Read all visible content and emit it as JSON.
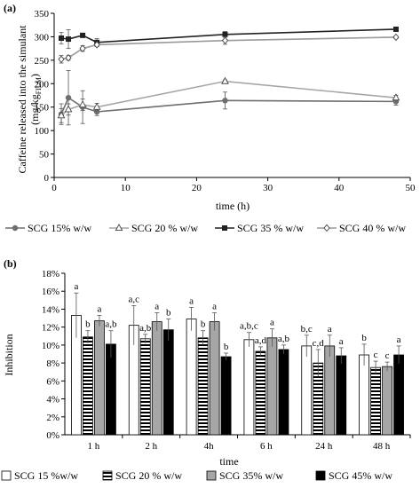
{
  "chart_data": [
    {
      "panel_label": "(a)",
      "type": "line",
      "xlabel": "time (h)",
      "ylabel_line1": "Caffeine released into the simulant",
      "ylabel_line2": "(mg/kg",
      "ylabel_sub": "FILM",
      "ylabel_close": ")",
      "xlim": [
        0,
        50
      ],
      "ylim": [
        0,
        350
      ],
      "xticks": [
        0,
        10,
        20,
        30,
        40,
        50
      ],
      "yticks": [
        0,
        50,
        100,
        150,
        200,
        250,
        300,
        350
      ],
      "grid": false,
      "legend_position": "bottom",
      "series": [
        {
          "name": "SCG 15% w/w",
          "color": "#6e6e6e",
          "marker": "circle-filled",
          "x": [
            1,
            2,
            4,
            6,
            24,
            48
          ],
          "y": [
            135,
            170,
            150,
            140,
            164,
            162
          ],
          "err": [
            22,
            58,
            35,
            8,
            18,
            8
          ]
        },
        {
          "name": "SCG 20 % w/w",
          "color": "#a6a6a6",
          "marker": "triangle-open",
          "x": [
            1,
            2,
            4,
            6,
            24,
            48
          ],
          "y": [
            132,
            145,
            155,
            150,
            205,
            170
          ],
          "err": [
            15,
            12,
            12,
            8,
            3,
            5
          ]
        },
        {
          "name": "SCG 35 % w/w",
          "color": "#222222",
          "marker": "square-filled",
          "x": [
            1,
            2,
            4,
            6,
            24,
            48
          ],
          "y": [
            297,
            295,
            303,
            288,
            305,
            316
          ],
          "err": [
            12,
            20,
            4,
            8,
            6,
            3
          ]
        },
        {
          "name": "SCG 40 % w/w",
          "color": "#9a9a9a",
          "marker": "diamond-open",
          "x": [
            1,
            2,
            4,
            6,
            24,
            48
          ],
          "y": [
            252,
            255,
            275,
            283,
            292,
            299
          ],
          "err": [
            8,
            5,
            6,
            4,
            8,
            3
          ]
        }
      ]
    },
    {
      "panel_label": "(b)",
      "type": "bar",
      "xlabel": "time",
      "ylabel": "Inhibition",
      "ylim": [
        0,
        18
      ],
      "yticks": [
        0,
        2,
        4,
        6,
        8,
        10,
        12,
        14,
        16,
        18
      ],
      "ytick_suffix": "%",
      "categories": [
        "1 h",
        "2 h",
        "4h",
        "6 h",
        "24 h",
        "48 h"
      ],
      "grid": false,
      "legend_position": "bottom",
      "series": [
        {
          "name": "SCG 15 %w/w",
          "pattern": "white",
          "values": [
            13.3,
            12.2,
            12.9,
            10.6,
            9.9,
            8.9
          ],
          "err": [
            2.5,
            2.2,
            1.3,
            0.8,
            1.2,
            1.2
          ],
          "letters": [
            "a",
            "a,c",
            "a",
            "a,b,c",
            "b,c",
            "b"
          ]
        },
        {
          "name": "SCG 20 % w/w",
          "pattern": "horizontal-stripes",
          "values": [
            10.9,
            10.7,
            10.8,
            9.3,
            8.0,
            7.5
          ],
          "err": [
            0.7,
            0.5,
            0.8,
            0.5,
            1.5,
            0.7
          ],
          "letters": [
            "b",
            "a,b",
            "b",
            "a,d",
            "c,d",
            "c"
          ]
        },
        {
          "name": "SCG 35% w/w",
          "pattern": "gray",
          "values": [
            12.7,
            12.6,
            12.6,
            10.8,
            9.9,
            7.6
          ],
          "err": [
            0.6,
            1.0,
            1.0,
            1.0,
            1.2,
            0.5
          ],
          "letters": [
            "a",
            "a",
            "a",
            "a",
            "a",
            "c"
          ]
        },
        {
          "name": "SCG 45% w/w",
          "pattern": "black",
          "values": [
            10.1,
            11.7,
            8.7,
            9.5,
            8.8,
            8.9
          ],
          "err": [
            1.5,
            1.2,
            0.4,
            0.5,
            0.9,
            1.0
          ],
          "letters": [
            "a,b",
            "b",
            "b",
            "a,b",
            "a",
            "a"
          ]
        }
      ]
    }
  ]
}
